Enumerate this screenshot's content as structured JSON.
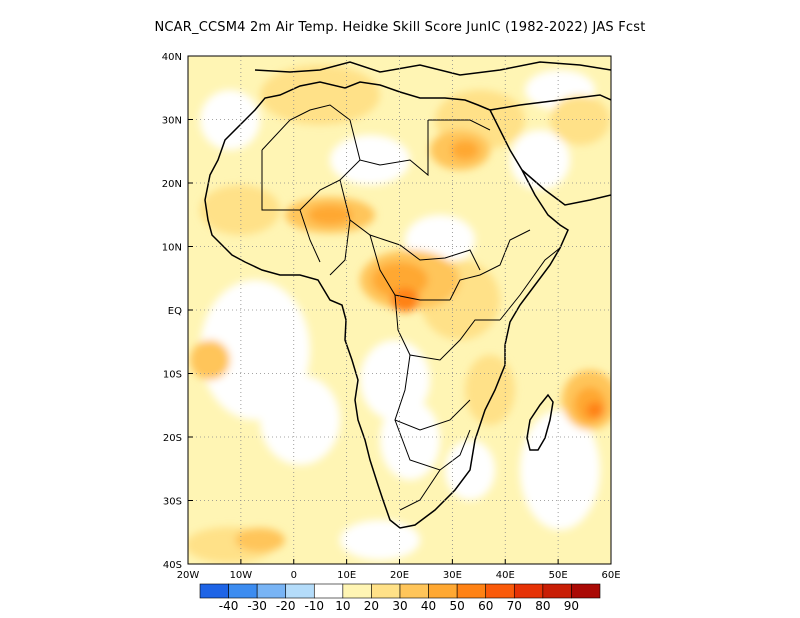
{
  "title": "NCAR_CCSM4  2m Air Temp. Heidke Skill Score JunIC (1982-2022) JAS Fcst",
  "map": {
    "lon_range": [
      -20,
      60
    ],
    "lat_range": [
      -40,
      40
    ],
    "x_ticks": [
      {
        "value": -20,
        "label": "20W"
      },
      {
        "value": -10,
        "label": "10W"
      },
      {
        "value": 0,
        "label": "0"
      },
      {
        "value": 10,
        "label": "10E"
      },
      {
        "value": 20,
        "label": "20E"
      },
      {
        "value": 30,
        "label": "30E"
      },
      {
        "value": 40,
        "label": "40E"
      },
      {
        "value": 50,
        "label": "50E"
      },
      {
        "value": 60,
        "label": "60E"
      }
    ],
    "y_ticks": [
      {
        "value": 40,
        "label": "40N"
      },
      {
        "value": 30,
        "label": "30N"
      },
      {
        "value": 20,
        "label": "20N"
      },
      {
        "value": 10,
        "label": "10N"
      },
      {
        "value": 0,
        "label": "EQ"
      },
      {
        "value": -10,
        "label": "10S"
      },
      {
        "value": -20,
        "label": "20S"
      },
      {
        "value": -30,
        "label": "30S"
      },
      {
        "value": -40,
        "label": "40S"
      }
    ],
    "grid": "dotted"
  },
  "colorbar": {
    "colors": [
      "#1e64e6",
      "#3c8cf0",
      "#78b4f5",
      "#b4dcfa",
      "#ffffff",
      "#fff5b4",
      "#ffe188",
      "#ffc55a",
      "#ffa832",
      "#ff8214",
      "#fa5a0a",
      "#e63205",
      "#c81e05",
      "#aa0a05"
    ],
    "labels": [
      "-40",
      "-30",
      "-20",
      "-10",
      "10",
      "20",
      "30",
      "40",
      "50",
      "60",
      "70",
      "80",
      "90"
    ]
  }
}
